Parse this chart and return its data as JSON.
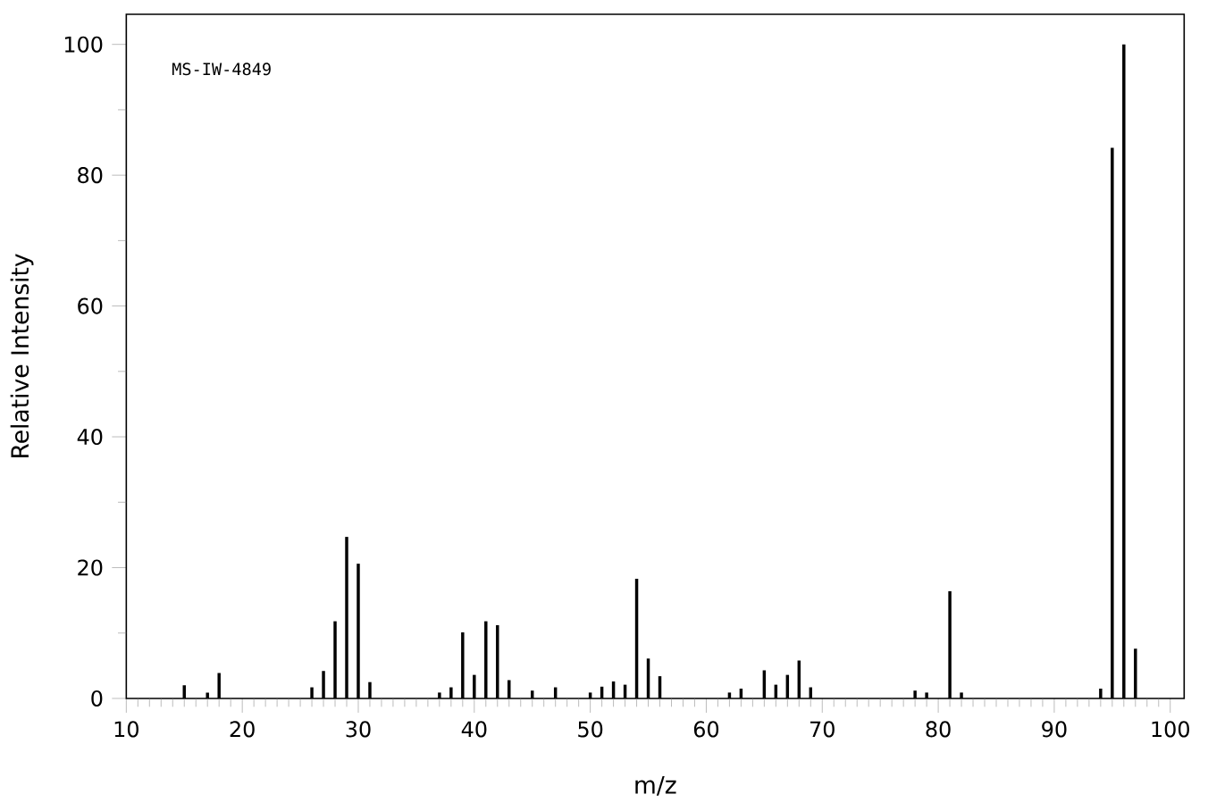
{
  "chart_data": {
    "type": "bar",
    "xlabel": "m/z",
    "ylabel": "Relative Intensity",
    "annotations": [
      "MS-IW-4849"
    ],
    "x": [
      15,
      17,
      18,
      26,
      27,
      28,
      29,
      30,
      31,
      37,
      38,
      39,
      40,
      41,
      42,
      43,
      45,
      47,
      50,
      51,
      52,
      53,
      54,
      55,
      56,
      62,
      63,
      65,
      66,
      67,
      68,
      69,
      78,
      79,
      81,
      82,
      94,
      95,
      96,
      97
    ],
    "values": [
      2.0,
      0.9,
      3.9,
      1.7,
      4.2,
      11.8,
      24.7,
      20.6,
      2.5,
      0.9,
      1.7,
      10.1,
      3.6,
      11.8,
      11.2,
      2.8,
      1.2,
      1.7,
      0.9,
      1.8,
      2.6,
      2.1,
      18.3,
      6.1,
      3.4,
      0.9,
      1.5,
      4.3,
      2.1,
      3.6,
      5.8,
      1.7,
      1.2,
      0.9,
      16.4,
      0.9,
      1.5,
      84.2,
      100,
      7.6
    ],
    "color": "#000000",
    "xlim": [
      10,
      101.2
    ],
    "ylim": [
      0,
      104.6
    ],
    "xticks": [
      10,
      {
        "value": 11,
        "label": null
      },
      {
        "value": 12,
        "label": null
      },
      {
        "value": 13,
        "label": null
      },
      {
        "value": 14,
        "label": null
      },
      {
        "value": 15,
        "label": null
      },
      {
        "value": 16,
        "label": null
      },
      {
        "value": 17,
        "label": null
      },
      {
        "value": 18,
        "label": null
      },
      {
        "value": 19,
        "label": null
      },
      20,
      {
        "value": 21,
        "label": null
      },
      {
        "value": 22,
        "label": null
      },
      {
        "value": 23,
        "label": null
      },
      {
        "value": 24,
        "label": null
      },
      {
        "value": 25,
        "label": null
      },
      {
        "value": 26,
        "label": null
      },
      {
        "value": 27,
        "label": null
      },
      {
        "value": 28,
        "label": null
      },
      {
        "value": 29,
        "label": null
      },
      30,
      {
        "value": 31,
        "label": null
      },
      {
        "value": 32,
        "label": null
      },
      {
        "value": 33,
        "label": null
      },
      {
        "value": 34,
        "label": null
      },
      {
        "value": 35,
        "label": null
      },
      {
        "value": 36,
        "label": null
      },
      {
        "value": 37,
        "label": null
      },
      {
        "value": 38,
        "label": null
      },
      {
        "value": 39,
        "label": null
      },
      40,
      {
        "value": 41,
        "label": null
      },
      {
        "value": 42,
        "label": null
      },
      {
        "value": 43,
        "label": null
      },
      {
        "value": 44,
        "label": null
      },
      {
        "value": 45,
        "label": null
      },
      {
        "value": 46,
        "label": null
      },
      {
        "value": 47,
        "label": null
      },
      {
        "value": 48,
        "label": null
      },
      {
        "value": 49,
        "label": null
      },
      50,
      {
        "value": 51,
        "label": null
      },
      {
        "value": 52,
        "label": null
      },
      {
        "value": 53,
        "label": null
      },
      {
        "value": 54,
        "label": null
      },
      {
        "value": 55,
        "label": null
      },
      {
        "value": 56,
        "label": null
      },
      {
        "value": 57,
        "label": null
      },
      {
        "value": 58,
        "label": null
      },
      {
        "value": 59,
        "label": null
      },
      60,
      {
        "value": 61,
        "label": null
      },
      {
        "value": 62,
        "label": null
      },
      {
        "value": 63,
        "label": null
      },
      {
        "value": 64,
        "label": null
      },
      {
        "value": 65,
        "label": null
      },
      {
        "value": 66,
        "label": null
      },
      {
        "value": 67,
        "label": null
      },
      {
        "value": 68,
        "label": null
      },
      {
        "value": 69,
        "label": null
      },
      70,
      {
        "value": 71,
        "label": null
      },
      {
        "value": 72,
        "label": null
      },
      {
        "value": 73,
        "label": null
      },
      {
        "value": 74,
        "label": null
      },
      {
        "value": 75,
        "label": null
      },
      {
        "value": 76,
        "label": null
      },
      {
        "value": 77,
        "label": null
      },
      {
        "value": 78,
        "label": null
      },
      {
        "value": 79,
        "label": null
      },
      80,
      {
        "value": 81,
        "label": null
      },
      {
        "value": 82,
        "label": null
      },
      {
        "value": 83,
        "label": null
      },
      {
        "value": 84,
        "label": null
      },
      {
        "value": 85,
        "label": null
      },
      {
        "value": 86,
        "label": null
      },
      {
        "value": 87,
        "label": null
      },
      {
        "value": 88,
        "label": null
      },
      {
        "value": 89,
        "label": null
      },
      90,
      {
        "value": 91,
        "label": null
      },
      {
        "value": 92,
        "label": null
      },
      {
        "value": 93,
        "label": null
      },
      {
        "value": 94,
        "label": null
      },
      {
        "value": 95,
        "label": null
      },
      {
        "value": 96,
        "label": null
      },
      {
        "value": 97,
        "label": null
      },
      {
        "value": 98,
        "label": null
      },
      {
        "value": 99,
        "label": null
      },
      100
    ],
    "yticks": [
      0,
      {
        "value": 10,
        "label": null
      },
      20,
      {
        "value": 30,
        "label": null
      },
      40,
      {
        "value": 50,
        "label": null
      },
      60,
      {
        "value": 70,
        "label": null
      },
      80,
      {
        "value": 90,
        "label": null
      },
      100
    ]
  }
}
